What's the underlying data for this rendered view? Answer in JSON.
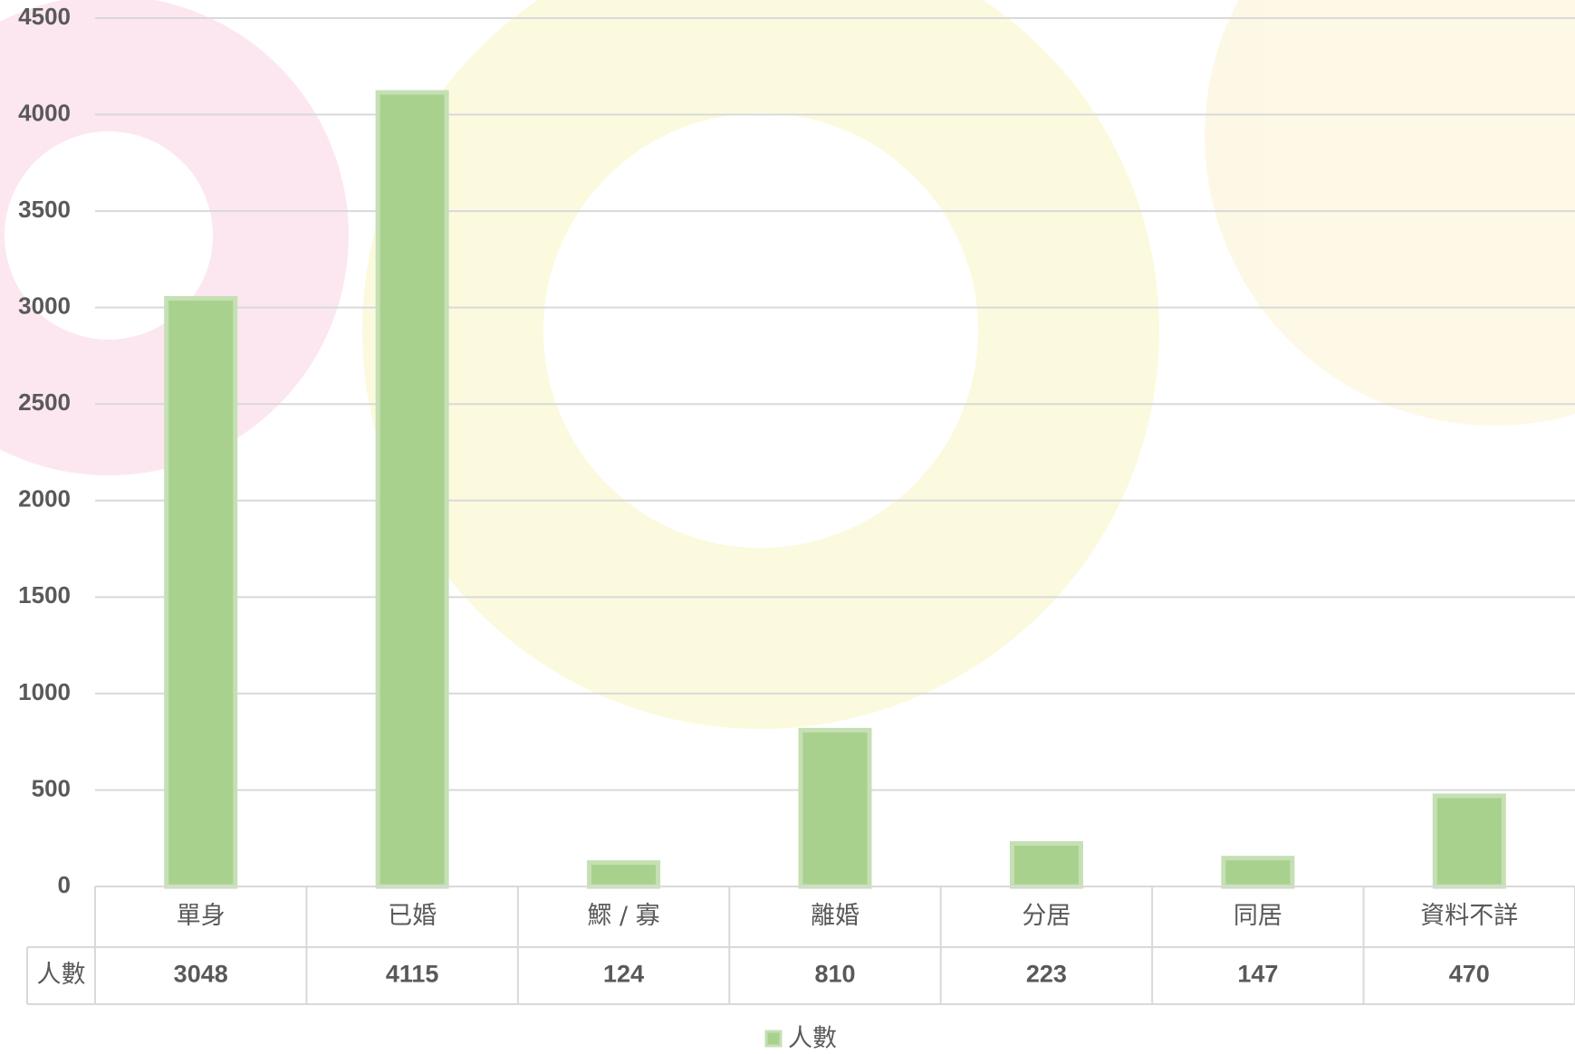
{
  "chart_data": {
    "type": "bar",
    "categories": [
      "單身",
      "已婚",
      "鰥 / 寡",
      "離婚",
      "分居",
      "同居",
      "資料不詳"
    ],
    "series": [
      {
        "name": "人數",
        "color": "#a9d18e",
        "values": [
          3048,
          4115,
          124,
          810,
          223,
          147,
          470
        ]
      }
    ],
    "ylim": [
      0,
      4500
    ],
    "yticks": [
      0,
      500,
      1000,
      1500,
      2000,
      2500,
      3000,
      3500,
      4000,
      4500
    ],
    "grid": true,
    "legend": "bottom"
  }
}
